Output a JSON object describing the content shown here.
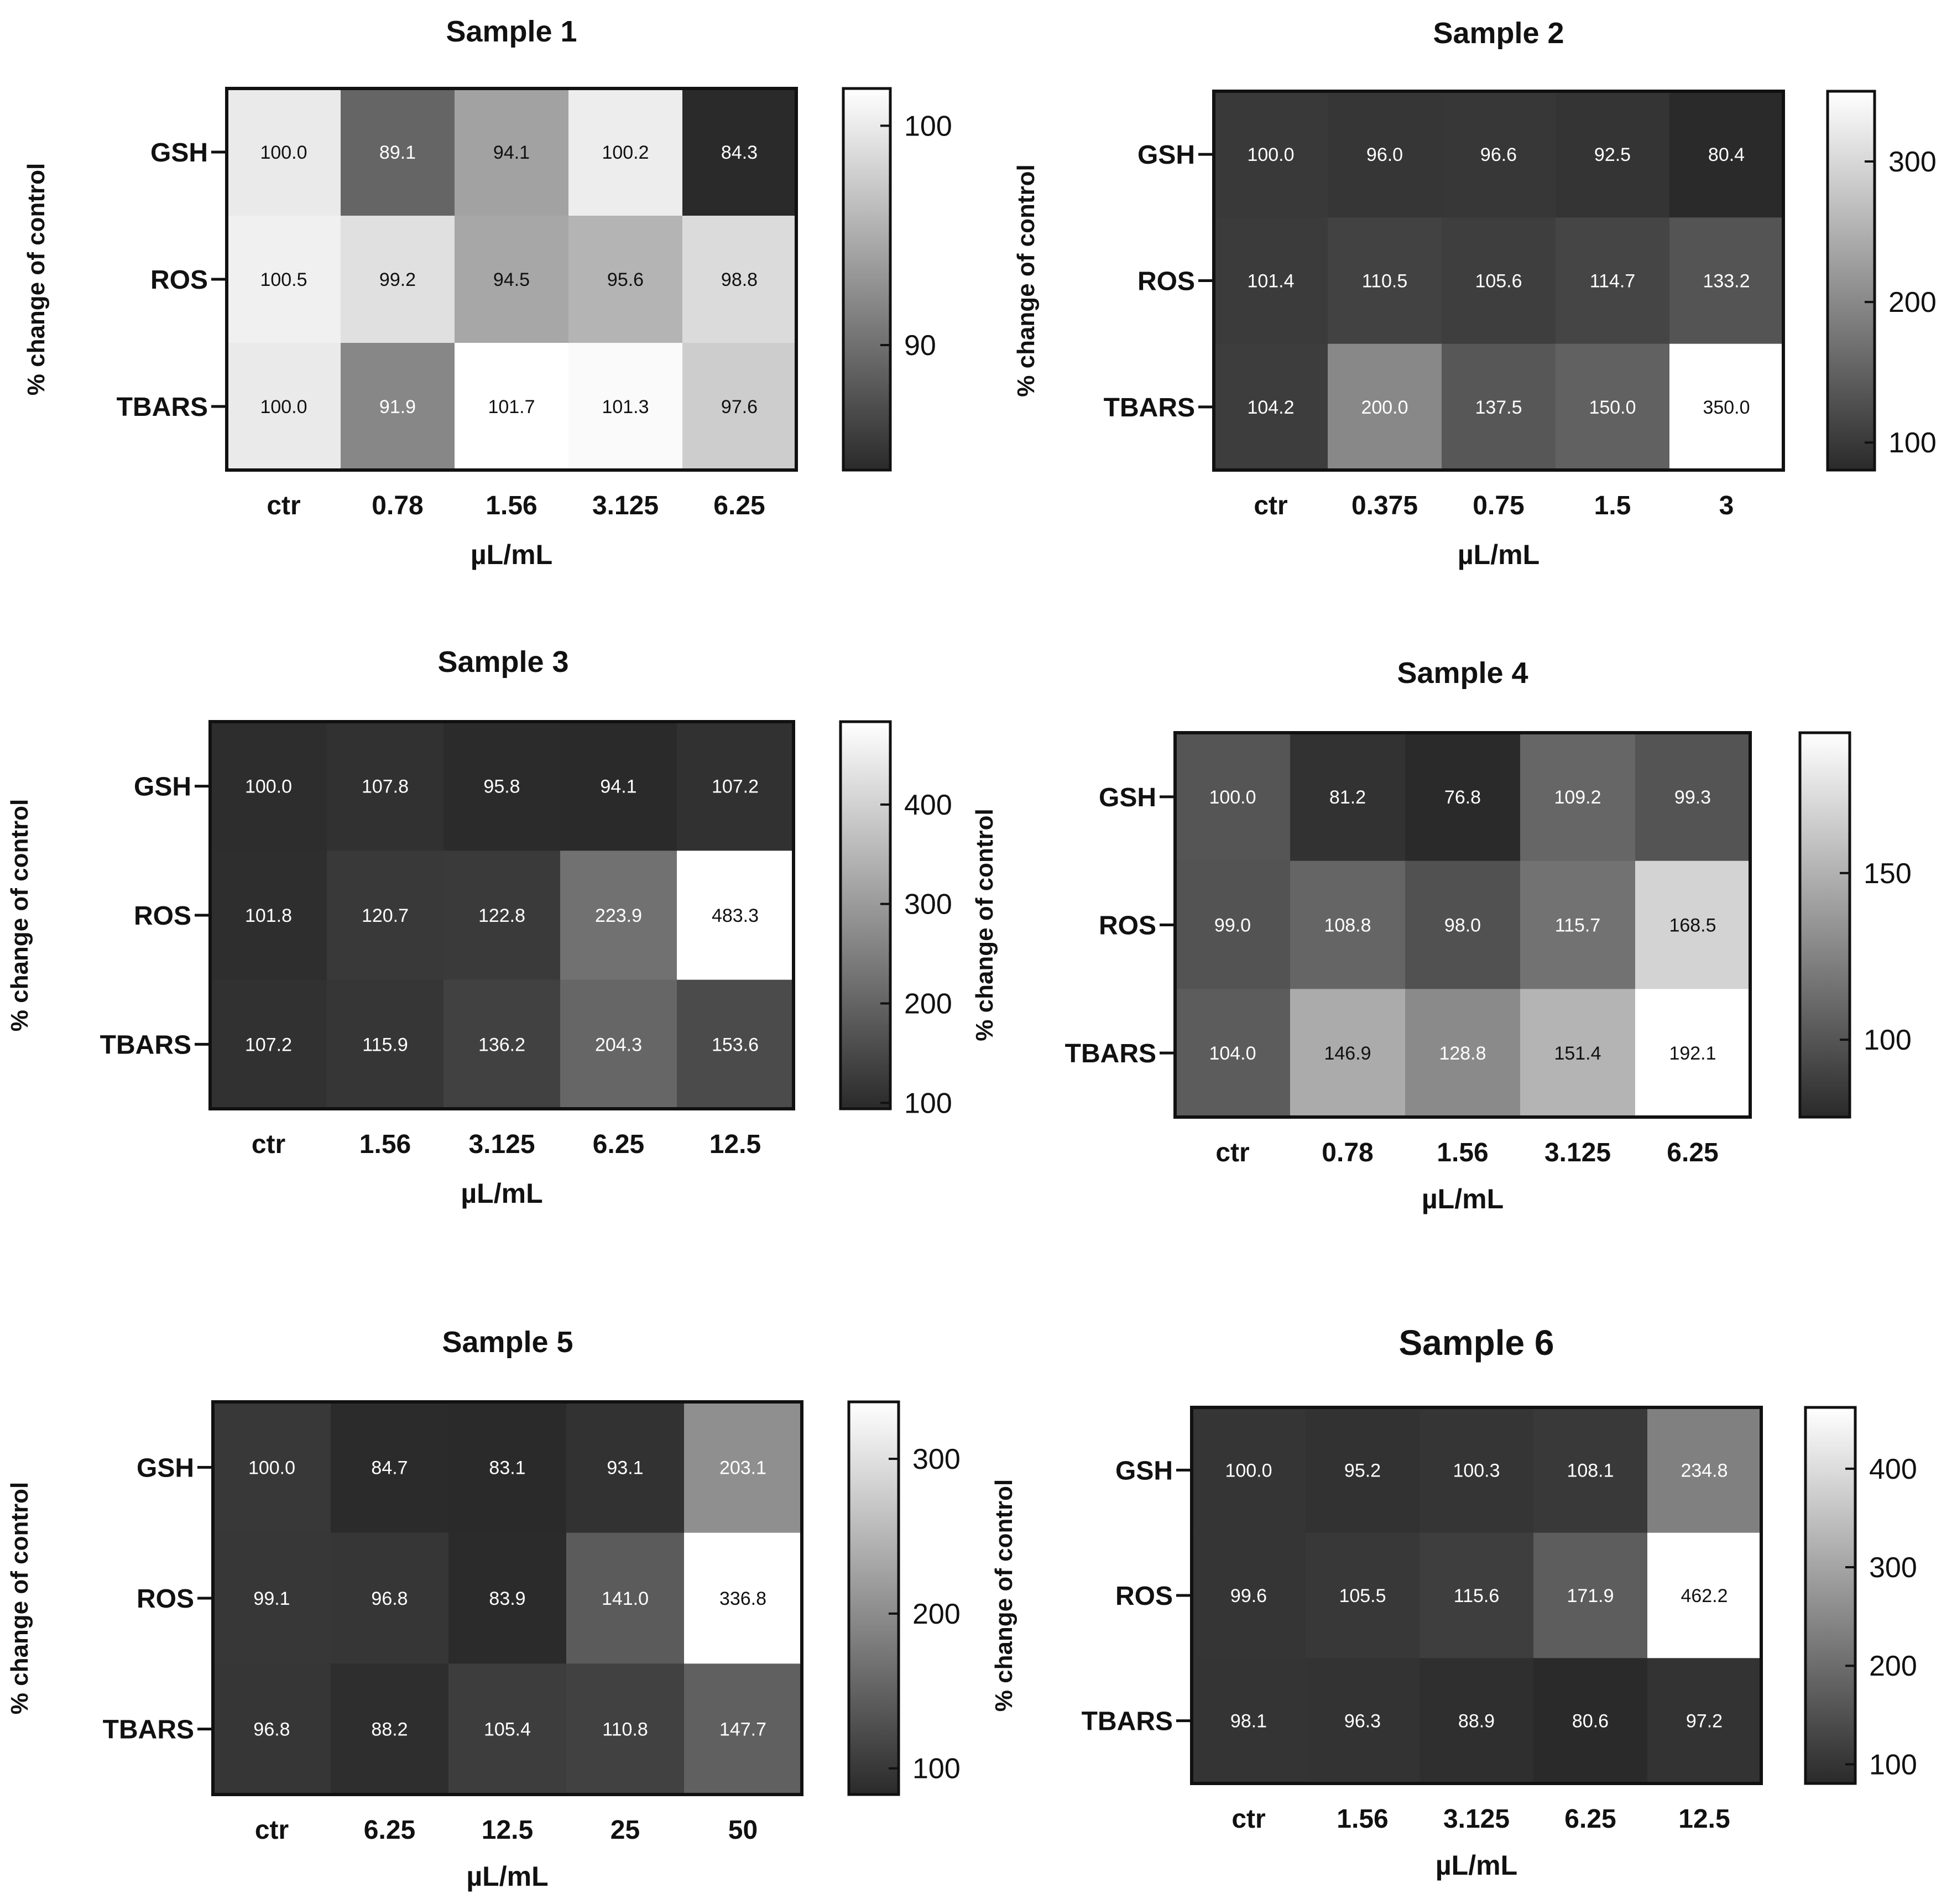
{
  "chart_data": [
    {
      "type": "heatmap",
      "title": "Sample 1",
      "ylabel": "% change of control",
      "xlabel": "µL/mL",
      "rows": [
        "GSH",
        "ROS",
        "TBARS"
      ],
      "columns": [
        "ctr",
        "0.78",
        "1.56",
        "3.125",
        "6.25"
      ],
      "values": [
        [
          100.0,
          89.1,
          94.1,
          100.2,
          84.3
        ],
        [
          100.5,
          99.2,
          94.5,
          95.6,
          98.8
        ],
        [
          100.0,
          91.9,
          101.7,
          101.3,
          97.6
        ]
      ],
      "labels": [
        [
          "100.0",
          "89.1",
          "94.1",
          "100.2",
          "84.3"
        ],
        [
          "100.5",
          "99.2",
          "94.5",
          "95.6",
          "98.8"
        ],
        [
          "100.0",
          "91.9",
          "101.7",
          "101.3",
          "97.6"
        ]
      ],
      "colorbar": {
        "range": [
          84.3,
          101.7
        ],
        "ticks": [
          90,
          100
        ],
        "tick_labels": [
          "90",
          "100"
        ],
        "colormap": "grayscale dark-to-white"
      }
    },
    {
      "type": "heatmap",
      "title": "Sample 2",
      "ylabel": "% change of control",
      "xlabel": "µL/mL",
      "rows": [
        "GSH",
        "ROS",
        "TBARS"
      ],
      "columns": [
        "ctr",
        "0.375",
        "0.75",
        "1.5",
        "3"
      ],
      "values": [
        [
          100.0,
          96.0,
          96.6,
          92.5,
          80.4
        ],
        [
          101.4,
          110.5,
          105.6,
          114.7,
          133.2
        ],
        [
          104.2,
          200.0,
          137.5,
          150.0,
          350.0
        ]
      ],
      "labels": [
        [
          "100.0",
          "96.0",
          "96.6",
          "92.5",
          "80.4"
        ],
        [
          "101.4",
          "110.5",
          "105.6",
          "114.7",
          "133.2"
        ],
        [
          "104.2",
          "200.0",
          "137.5",
          "150.0",
          "350.0"
        ]
      ],
      "colorbar": {
        "range": [
          80.4,
          350.0
        ],
        "ticks": [
          100,
          200,
          300
        ],
        "tick_labels": [
          "100",
          "200",
          "300"
        ],
        "colormap": "grayscale dark-to-white"
      }
    },
    {
      "type": "heatmap",
      "title": "Sample 3",
      "ylabel": "% change of control",
      "xlabel": "µL/mL",
      "rows": [
        "GSH",
        "ROS",
        "TBARS"
      ],
      "columns": [
        "ctr",
        "1.56",
        "3.125",
        "6.25",
        "12.5"
      ],
      "values": [
        [
          100.0,
          107.8,
          95.8,
          94.1,
          107.2
        ],
        [
          101.8,
          120.7,
          122.8,
          223.9,
          483.3
        ],
        [
          107.2,
          115.9,
          136.2,
          204.3,
          153.6
        ]
      ],
      "labels": [
        [
          "100.0",
          "107.8",
          "95.8",
          "94.1",
          "107.2"
        ],
        [
          "101.8",
          "120.7",
          "122.8",
          "223.9",
          "483.3"
        ],
        [
          "107.2",
          "115.9",
          "136.2",
          "204.3",
          "153.6"
        ]
      ],
      "colorbar": {
        "range": [
          94.1,
          483.3
        ],
        "ticks": [
          100,
          200,
          300,
          400
        ],
        "tick_labels": [
          "100",
          "200",
          "300",
          "400"
        ],
        "colormap": "grayscale dark-to-white"
      }
    },
    {
      "type": "heatmap",
      "title": "Sample 4",
      "ylabel": "% change of control",
      "xlabel": "µL/mL",
      "rows": [
        "GSH",
        "ROS",
        "TBARS"
      ],
      "columns": [
        "ctr",
        "0.78",
        "1.56",
        "3.125",
        "6.25"
      ],
      "values": [
        [
          100.0,
          81.2,
          76.8,
          109.2,
          99.3
        ],
        [
          99.0,
          108.8,
          98.0,
          115.7,
          168.5
        ],
        [
          104.0,
          146.9,
          128.8,
          151.4,
          192.1
        ]
      ],
      "labels": [
        [
          "100.0",
          "81.2",
          "76.8",
          "109.2",
          "99.3"
        ],
        [
          "99.0",
          "108.8",
          "98.0",
          "115.7",
          "168.5"
        ],
        [
          "104.0",
          "146.9",
          "128.8",
          "151.4",
          "192.1"
        ]
      ],
      "colorbar": {
        "range": [
          76.8,
          192.1
        ],
        "ticks": [
          100,
          150
        ],
        "tick_labels": [
          "100",
          "150"
        ],
        "colormap": "grayscale dark-to-white"
      }
    },
    {
      "type": "heatmap",
      "title": "Sample 5",
      "ylabel": "% change of control",
      "xlabel": "µL/mL",
      "rows": [
        "GSH",
        "ROS",
        "TBARS"
      ],
      "columns": [
        "ctr",
        "6.25",
        "12.5",
        "25",
        "50"
      ],
      "values": [
        [
          100.0,
          84.7,
          83.1,
          93.1,
          203.1
        ],
        [
          99.1,
          96.8,
          83.9,
          141.0,
          336.8
        ],
        [
          96.8,
          88.2,
          105.4,
          110.8,
          147.7
        ]
      ],
      "labels": [
        [
          "100.0",
          "84.7",
          "83.1",
          "93.1",
          "203.1"
        ],
        [
          "99.1",
          "96.8",
          "83.9",
          "141.0",
          "336.8"
        ],
        [
          "96.8",
          "88.2",
          "105.4",
          "110.8",
          "147.7"
        ]
      ],
      "colorbar": {
        "range": [
          83.1,
          336.8
        ],
        "ticks": [
          100,
          200,
          300
        ],
        "tick_labels": [
          "100",
          "200",
          "300"
        ],
        "colormap": "grayscale dark-to-white"
      }
    },
    {
      "type": "heatmap",
      "title": "Sample 6",
      "ylabel": "% change of control",
      "xlabel": "µL/mL",
      "rows": [
        "GSH",
        "ROS",
        "TBARS"
      ],
      "columns": [
        "ctr",
        "1.56",
        "3.125",
        "6.25",
        "12.5"
      ],
      "values": [
        [
          100.0,
          95.2,
          100.3,
          108.1,
          234.8
        ],
        [
          99.6,
          105.5,
          115.6,
          171.9,
          462.2
        ],
        [
          98.1,
          96.3,
          88.9,
          80.6,
          97.2
        ]
      ],
      "labels": [
        [
          "100.0",
          "95.2",
          "100.3",
          "108.1",
          "234.8"
        ],
        [
          "99.6",
          "105.5",
          "115.6",
          "171.9",
          "462.2"
        ],
        [
          "98.1",
          "96.3",
          "88.9",
          "80.6",
          "97.2"
        ]
      ],
      "colorbar": {
        "range": [
          80.6,
          462.2
        ],
        "ticks": [
          100,
          200,
          300,
          400
        ],
        "tick_labels": [
          "100",
          "200",
          "300",
          "400"
        ],
        "colormap": "grayscale dark-to-white"
      }
    }
  ]
}
